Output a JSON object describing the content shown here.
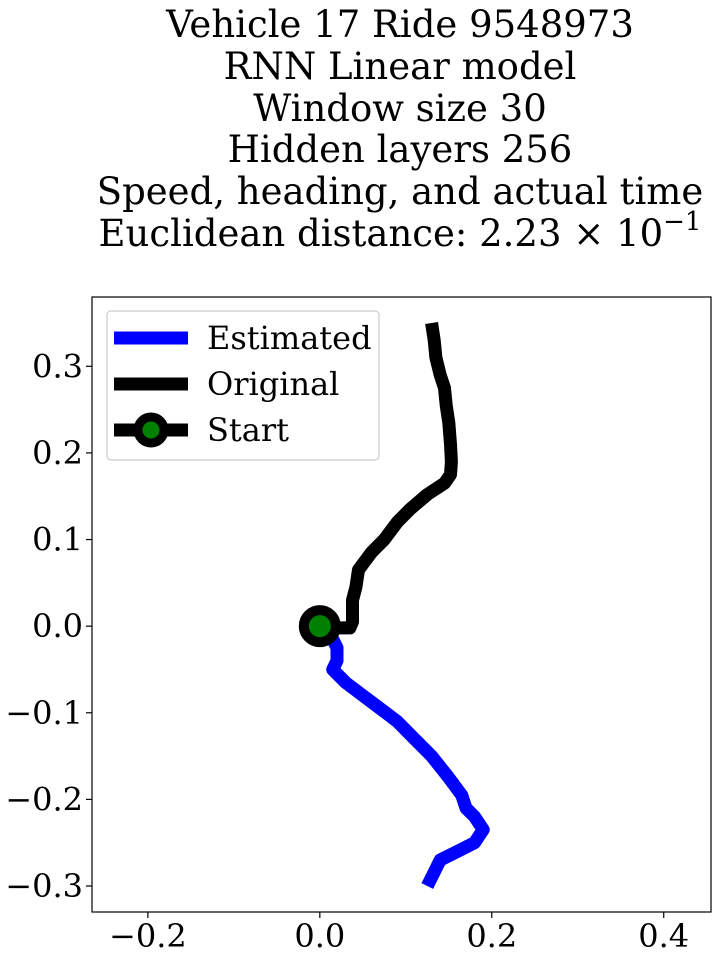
{
  "chart_data": {
    "type": "line",
    "title_lines": [
      "Vehicle 17 Ride 9548973",
      "RNN Linear model",
      "Window size 30",
      "Hidden layers 256",
      "Speed, heading, and actual time",
      "Euclidean distance: 2.23 × 10⁻¹"
    ],
    "title_distance": {
      "prefix": "Euclidean distance: ",
      "mantissa": "2.23",
      "times": "×",
      "base": "10",
      "exponent": "−1"
    },
    "xlabel": "",
    "ylabel": "",
    "xlim": [
      -0.265,
      0.455
    ],
    "ylim": [
      -0.33,
      0.38
    ],
    "xticks": [
      -0.2,
      0.0,
      0.2,
      0.4
    ],
    "xtick_labels": [
      "−0.2",
      "0.0",
      "0.2",
      "0.4"
    ],
    "yticks": [
      0.3,
      0.2,
      0.1,
      0.0,
      -0.1,
      -0.2,
      -0.3
    ],
    "ytick_labels": [
      "0.3",
      "0.2",
      "0.1",
      "0.0",
      "−0.1",
      "−0.2",
      "−0.3"
    ],
    "grid": false,
    "legend_position": "top-left",
    "legend": [
      {
        "label": "Estimated",
        "color": "#0000ff",
        "marker": "none"
      },
      {
        "label": "Original",
        "color": "#000000",
        "marker": "none"
      },
      {
        "label": "Start",
        "color": "#000000",
        "marker": "circle",
        "marker_face": "#008000"
      }
    ],
    "series": [
      {
        "name": "Estimated",
        "color": "#0000ff",
        "points": [
          [
            0.0,
            0.0
          ],
          [
            0.015,
            -0.015
          ],
          [
            0.02,
            -0.025
          ],
          [
            0.02,
            -0.04
          ],
          [
            0.015,
            -0.05
          ],
          [
            0.03,
            -0.065
          ],
          [
            0.05,
            -0.08
          ],
          [
            0.07,
            -0.095
          ],
          [
            0.09,
            -0.11
          ],
          [
            0.11,
            -0.13
          ],
          [
            0.13,
            -0.15
          ],
          [
            0.15,
            -0.175
          ],
          [
            0.165,
            -0.195
          ],
          [
            0.17,
            -0.21
          ],
          [
            0.18,
            -0.22
          ],
          [
            0.19,
            -0.235
          ],
          [
            0.18,
            -0.25
          ],
          [
            0.16,
            -0.26
          ],
          [
            0.14,
            -0.27
          ],
          [
            0.135,
            -0.28
          ],
          [
            0.13,
            -0.29
          ],
          [
            0.125,
            -0.3
          ]
        ]
      },
      {
        "name": "Original",
        "color": "#000000",
        "points": [
          [
            0.0,
            0.0
          ],
          [
            0.02,
            -0.002
          ],
          [
            0.035,
            -0.002
          ],
          [
            0.038,
            0.005
          ],
          [
            0.038,
            0.03
          ],
          [
            0.042,
            0.045
          ],
          [
            0.045,
            0.065
          ],
          [
            0.06,
            0.085
          ],
          [
            0.075,
            0.1
          ],
          [
            0.09,
            0.12
          ],
          [
            0.105,
            0.135
          ],
          [
            0.125,
            0.152
          ],
          [
            0.145,
            0.165
          ],
          [
            0.152,
            0.175
          ],
          [
            0.153,
            0.19
          ],
          [
            0.152,
            0.21
          ],
          [
            0.15,
            0.235
          ],
          [
            0.147,
            0.255
          ],
          [
            0.145,
            0.275
          ],
          [
            0.14,
            0.29
          ],
          [
            0.135,
            0.31
          ],
          [
            0.133,
            0.33
          ],
          [
            0.13,
            0.35
          ]
        ]
      }
    ],
    "start_point": {
      "x": 0.0,
      "y": 0.0,
      "face": "#008000",
      "edge": "#000000"
    }
  }
}
